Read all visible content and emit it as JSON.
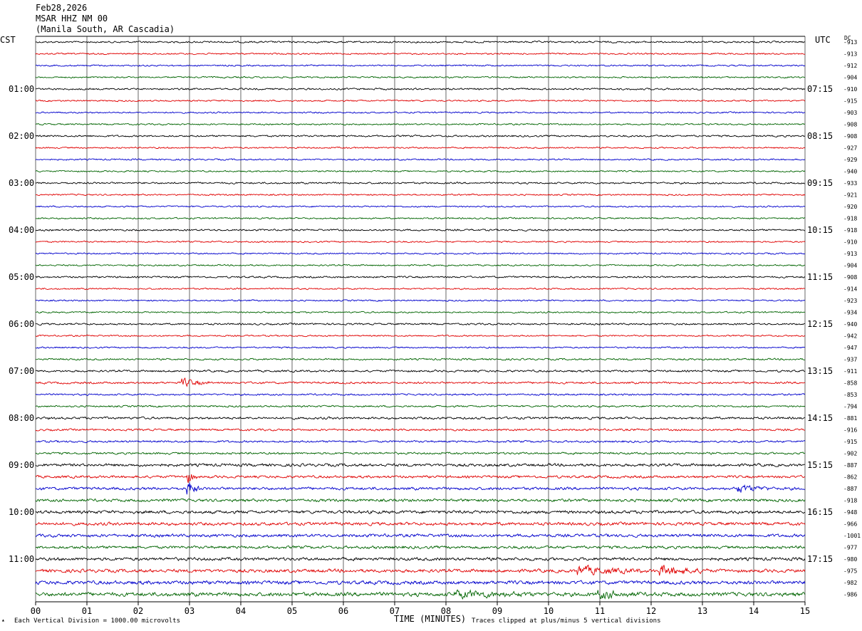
{
  "header": {
    "date": "Feb28,2026",
    "station": "MSAR HHZ NM 00",
    "location": "(Manila South, AR Cascadia)"
  },
  "labels": {
    "left_tz": "CST",
    "right_tz": "UTC",
    "dc": "DC",
    "xlabel": "TIME (MINUTES)",
    "scale_note": "Each Vertical Division = 1000.00 microvolts",
    "clip_note": "Traces clipped at plus/minus 5 vertical divisions"
  },
  "colors": {
    "trace_cycle": [
      "#000000",
      "#e00000",
      "#0000cc",
      "#006400"
    ],
    "grid": "#000000",
    "background": "#ffffff"
  },
  "chart_data": {
    "type": "line",
    "title": "",
    "xlabel": "TIME (MINUTES)",
    "xlim": [
      0,
      15
    ],
    "x_ticks": [
      "00",
      "01",
      "02",
      "03",
      "04",
      "05",
      "06",
      "07",
      "08",
      "09",
      "10",
      "11",
      "12",
      "13",
      "14",
      "15"
    ],
    "rows": 48,
    "minutes_per_row": 15,
    "left_hour_labels": [
      "01:00",
      "02:00",
      "03:00",
      "04:00",
      "05:00",
      "06:00",
      "07:00",
      "08:00",
      "09:00",
      "10:00",
      "11:00"
    ],
    "right_hour_labels": [
      "07:15",
      "08:15",
      "09:15",
      "10:15",
      "11:15",
      "12:15",
      "13:15",
      "14:15",
      "15:15",
      "16:15",
      "17:15"
    ],
    "hour_label_row_start": 4,
    "hour_label_row_step": 4,
    "dc_offsets": [
      -913,
      -913,
      -912,
      -904,
      -910,
      -915,
      -903,
      -908,
      -908,
      -927,
      -929,
      -940,
      -933,
      -921,
      -920,
      -918,
      -918,
      -910,
      -913,
      -904,
      -908,
      -914,
      -923,
      -934,
      -940,
      -942,
      -947,
      -937,
      -911,
      -858,
      -853,
      -794,
      -881,
      -916,
      -915,
      -902,
      -887,
      -862,
      -887,
      -918,
      -948,
      -966,
      -1001,
      -977,
      -980,
      -975,
      -982,
      -986
    ],
    "noise_level_per_row": [
      0.35,
      0.3,
      0.3,
      0.3,
      0.35,
      0.3,
      0.3,
      0.3,
      0.35,
      0.3,
      0.3,
      0.3,
      0.35,
      0.3,
      0.3,
      0.3,
      0.35,
      0.3,
      0.3,
      0.3,
      0.35,
      0.3,
      0.3,
      0.3,
      0.35,
      0.3,
      0.3,
      0.35,
      0.4,
      0.4,
      0.35,
      0.35,
      0.45,
      0.4,
      0.4,
      0.4,
      0.55,
      0.5,
      0.55,
      0.55,
      0.6,
      0.6,
      0.6,
      0.55,
      0.6,
      0.65,
      0.7,
      0.75
    ],
    "events": [
      {
        "row": 29,
        "minute": 2.9,
        "amplitude": 1.8,
        "duration_min": 0.5
      },
      {
        "row": 37,
        "minute": 3.0,
        "amplitude": 2.5,
        "duration_min": 0.15
      },
      {
        "row": 38,
        "minute": 3.0,
        "amplitude": 3.5,
        "duration_min": 0.2
      },
      {
        "row": 38,
        "minute": 13.7,
        "amplitude": 2.0,
        "duration_min": 0.6
      },
      {
        "row": 45,
        "minute": 10.6,
        "amplitude": 2.0,
        "duration_min": 1.2
      },
      {
        "row": 45,
        "minute": 12.2,
        "amplitude": 2.2,
        "duration_min": 0.9
      },
      {
        "row": 47,
        "minute": 8.2,
        "amplitude": 1.6,
        "duration_min": 1.5
      },
      {
        "row": 47,
        "minute": 11.0,
        "amplitude": 1.6,
        "duration_min": 0.8
      }
    ]
  }
}
